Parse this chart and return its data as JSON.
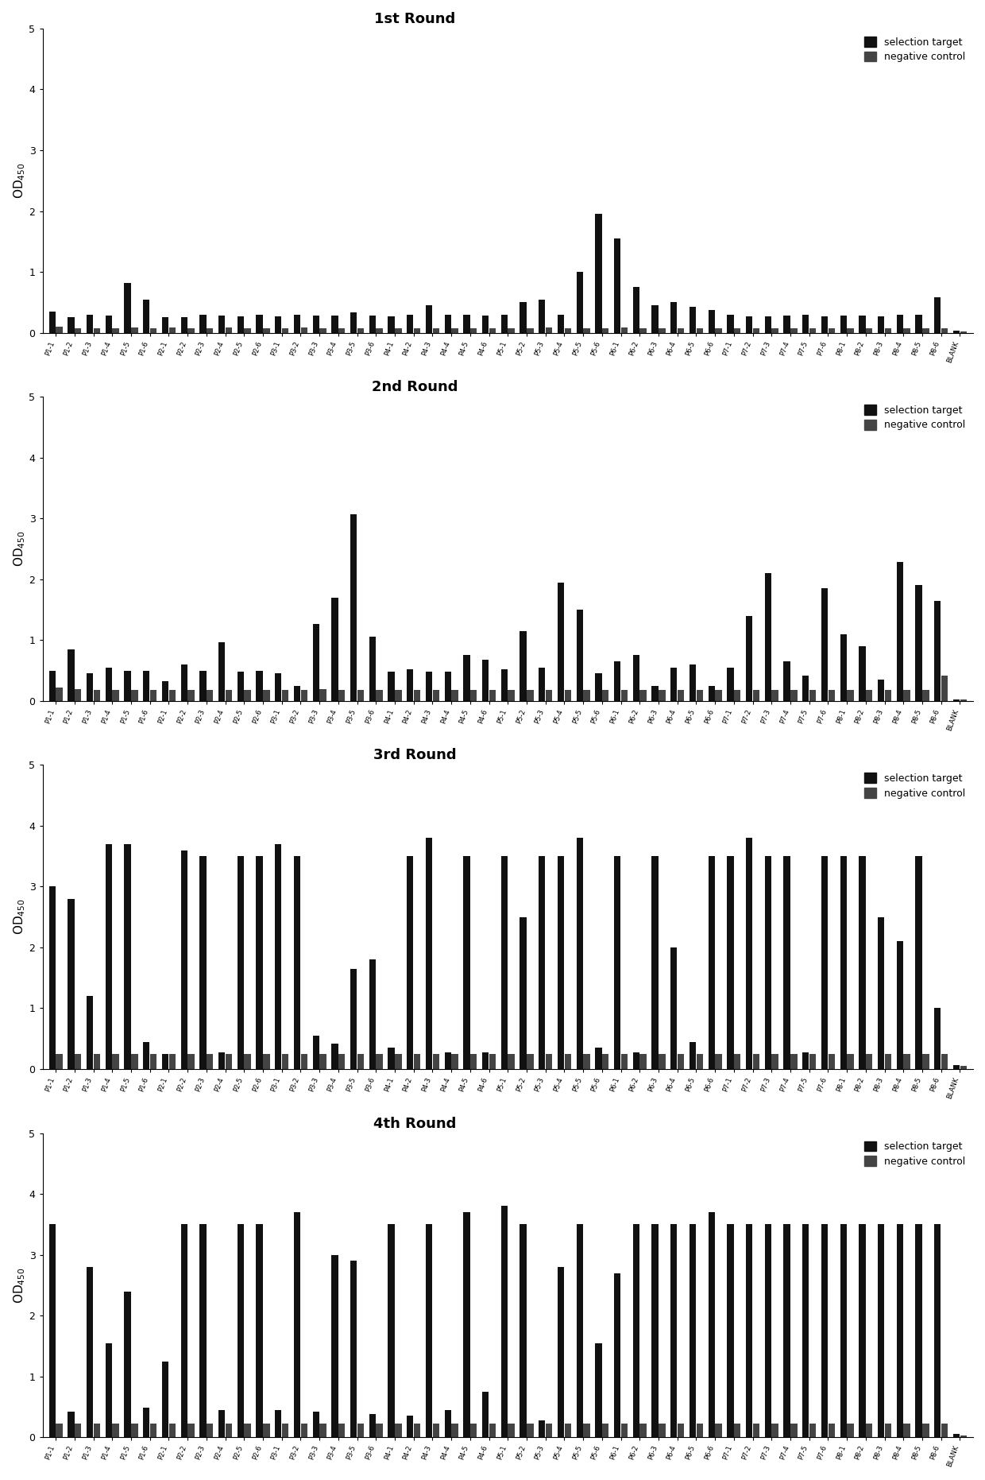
{
  "rounds": [
    "1st Round",
    "2nd Round",
    "3rd Round",
    "4th Round"
  ],
  "ylim": [
    0,
    5
  ],
  "yticks": [
    0,
    1,
    2,
    3,
    4,
    5
  ],
  "ylabel": "OD$_{450}$",
  "legend_labels": [
    "selection target",
    "negative control"
  ],
  "color_target": "#111111",
  "color_neg": "#444444",
  "bar_width": 0.35,
  "x_labels": [
    "P1-1",
    "P1-2",
    "P1-3",
    "P1-4",
    "P1-5",
    "P1-6",
    "P2-1",
    "P2-2",
    "P2-3",
    "P2-4",
    "P2-5",
    "P2-6",
    "P3-1",
    "P3-2",
    "P3-3",
    "P3-4",
    "P3-5",
    "P3-6",
    "P4-1",
    "P4-2",
    "P4-3",
    "P4-4",
    "P4-5",
    "P4-6",
    "P5-1",
    "P5-2",
    "P5-3",
    "P5-4",
    "P5-5",
    "P5-6",
    "P6-1",
    "P6-2",
    "P6-3",
    "P6-4",
    "P6-5",
    "P6-6",
    "P7-1",
    "P7-2",
    "P7-3",
    "P7-4",
    "P7-5",
    "P7-6",
    "P8-1",
    "P8-2",
    "P8-3",
    "P8-4",
    "P8-5",
    "P8-6",
    "BLANK"
  ],
  "round1": {
    "target": [
      0.35,
      0.25,
      0.3,
      0.28,
      0.82,
      0.55,
      0.25,
      0.25,
      0.3,
      0.28,
      0.27,
      0.3,
      0.27,
      0.3,
      0.28,
      0.28,
      0.33,
      0.28,
      0.27,
      0.3,
      0.45,
      0.3,
      0.3,
      0.28,
      0.3,
      0.5,
      0.55,
      0.3,
      1.0,
      1.95,
      1.55,
      0.75,
      0.45,
      0.5,
      0.42,
      0.38,
      0.3,
      0.27,
      0.27,
      0.28,
      0.3,
      0.27,
      0.28,
      0.28,
      0.27,
      0.3,
      0.3,
      0.58,
      0.03
    ],
    "neg": [
      0.1,
      0.07,
      0.07,
      0.07,
      0.08,
      0.07,
      0.08,
      0.07,
      0.07,
      0.08,
      0.07,
      0.07,
      0.07,
      0.08,
      0.07,
      0.07,
      0.07,
      0.07,
      0.07,
      0.07,
      0.07,
      0.07,
      0.07,
      0.07,
      0.07,
      0.07,
      0.08,
      0.07,
      0.07,
      0.07,
      0.08,
      0.07,
      0.07,
      0.07,
      0.07,
      0.07,
      0.07,
      0.07,
      0.07,
      0.07,
      0.07,
      0.07,
      0.07,
      0.07,
      0.07,
      0.07,
      0.07,
      0.07,
      0.02
    ]
  },
  "round2": {
    "target": [
      0.5,
      0.85,
      0.45,
      0.55,
      0.5,
      0.5,
      0.32,
      0.6,
      0.5,
      0.97,
      0.48,
      0.5,
      0.45,
      0.25,
      1.27,
      1.7,
      3.07,
      1.05,
      0.48,
      0.52,
      0.48,
      0.48,
      0.75,
      0.68,
      0.52,
      1.15,
      0.55,
      1.95,
      1.5,
      0.45,
      0.65,
      0.75,
      0.25,
      0.55,
      0.6,
      0.25,
      0.55,
      1.4,
      2.1,
      0.65,
      0.42,
      1.85,
      1.1,
      0.9,
      0.35,
      2.28,
      1.9,
      1.65,
      0.02
    ],
    "neg": [
      0.22,
      0.2,
      0.18,
      0.18,
      0.18,
      0.18,
      0.18,
      0.18,
      0.18,
      0.18,
      0.18,
      0.18,
      0.18,
      0.18,
      0.2,
      0.18,
      0.18,
      0.18,
      0.18,
      0.18,
      0.18,
      0.18,
      0.18,
      0.18,
      0.18,
      0.18,
      0.18,
      0.18,
      0.18,
      0.18,
      0.18,
      0.18,
      0.18,
      0.18,
      0.18,
      0.18,
      0.18,
      0.18,
      0.18,
      0.18,
      0.18,
      0.18,
      0.18,
      0.18,
      0.18,
      0.18,
      0.18,
      0.42,
      0.02
    ]
  },
  "round3": {
    "target": [
      3.0,
      2.8,
      1.2,
      3.7,
      3.7,
      0.45,
      0.25,
      3.6,
      3.5,
      0.27,
      3.5,
      3.5,
      3.7,
      3.5,
      0.55,
      0.42,
      1.65,
      1.8,
      0.35,
      3.5,
      3.8,
      0.27,
      3.5,
      0.27,
      3.5,
      2.5,
      3.5,
      3.5,
      3.8,
      0.35,
      3.5,
      0.27,
      3.5,
      2.0,
      0.45,
      3.5,
      3.5,
      3.8,
      3.5,
      3.5,
      0.27,
      3.5,
      3.5,
      3.5,
      2.5,
      2.1,
      3.5,
      1.0,
      0.07
    ],
    "neg": [
      0.25,
      0.25,
      0.25,
      0.25,
      0.25,
      0.25,
      0.25,
      0.25,
      0.25,
      0.25,
      0.25,
      0.25,
      0.25,
      0.25,
      0.25,
      0.25,
      0.25,
      0.25,
      0.25,
      0.25,
      0.25,
      0.25,
      0.25,
      0.25,
      0.25,
      0.25,
      0.25,
      0.25,
      0.25,
      0.25,
      0.25,
      0.25,
      0.25,
      0.25,
      0.25,
      0.25,
      0.25,
      0.25,
      0.25,
      0.25,
      0.25,
      0.25,
      0.25,
      0.25,
      0.25,
      0.25,
      0.25,
      0.25,
      0.05
    ]
  },
  "round4": {
    "target": [
      3.5,
      0.42,
      2.8,
      1.55,
      2.4,
      0.48,
      1.25,
      3.5,
      3.5,
      0.45,
      3.5,
      3.5,
      0.45,
      3.7,
      0.42,
      3.0,
      2.9,
      0.38,
      3.5,
      0.35,
      3.5,
      0.45,
      3.7,
      0.75,
      3.8,
      3.5,
      0.28,
      2.8,
      3.5,
      1.55,
      2.7,
      3.5,
      3.5,
      3.5,
      3.5,
      3.7,
      3.5,
      3.5,
      3.5,
      3.5,
      3.5,
      3.5,
      3.5,
      3.5,
      3.5,
      3.5,
      3.5,
      3.5,
      0.05
    ],
    "neg": [
      0.22,
      0.22,
      0.22,
      0.22,
      0.22,
      0.22,
      0.22,
      0.22,
      0.22,
      0.22,
      0.22,
      0.22,
      0.22,
      0.22,
      0.22,
      0.22,
      0.22,
      0.22,
      0.22,
      0.22,
      0.22,
      0.22,
      0.22,
      0.22,
      0.22,
      0.22,
      0.22,
      0.22,
      0.22,
      0.22,
      0.22,
      0.22,
      0.22,
      0.22,
      0.22,
      0.22,
      0.22,
      0.22,
      0.22,
      0.22,
      0.22,
      0.22,
      0.22,
      0.22,
      0.22,
      0.22,
      0.22,
      0.22,
      0.03
    ]
  },
  "title_fontsize": 13,
  "tick_fontsize": 6,
  "ylabel_fontsize": 11,
  "legend_fontsize": 9
}
